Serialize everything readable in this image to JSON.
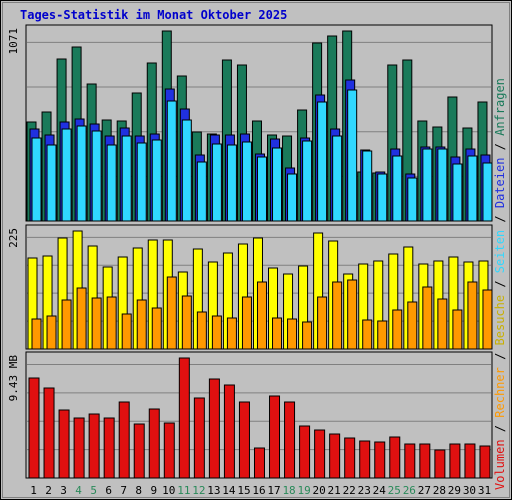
{
  "title": "Tages-Statistik im Monat Oktober 2025",
  "chart_data": {
    "type": "bar",
    "days": [
      "1",
      "2",
      "3",
      "4",
      "5",
      "6",
      "7",
      "8",
      "9",
      "10",
      "11",
      "12",
      "13",
      "14",
      "15",
      "16",
      "17",
      "18",
      "19",
      "20",
      "21",
      "22",
      "23",
      "24",
      "25",
      "26",
      "27",
      "28",
      "29",
      "30",
      "31"
    ],
    "weekend_days": [
      "4",
      "5",
      "11",
      "12",
      "18",
      "19",
      "25",
      "26"
    ],
    "panels": {
      "top": {
        "scale_label": "1071",
        "ymax": 1071,
        "series": [
          {
            "name": "Anfragen",
            "color": "#1a7a5a",
            "values": [
              558,
              616,
              911,
              982,
              773,
              568,
              566,
              722,
              889,
              1071,
              817,
              503,
              492,
              905,
              879,
              563,
              486,
              478,
              626,
              1004,
              1043,
              1071,
              278,
              271,
              877,
              909,
              561,
              529,
              701,
              526,
              668
            ]
          },
          {
            "name": "Dateien",
            "color": "#2030e0",
            "values": [
              518,
              482,
              558,
              573,
              544,
              480,
              525,
              481,
              488,
              742,
              633,
              373,
              483,
              483,
              488,
              378,
              465,
              299,
              470,
              711,
              520,
              794,
              403,
              275,
              405,
              264,
              418,
              418,
              361,
              404,
              372
            ]
          },
          {
            "name": "Seiten",
            "color": "#30d8ff",
            "values": [
              467,
              428,
              521,
              538,
              507,
              426,
              478,
              440,
              457,
              676,
              567,
              332,
              432,
              431,
              443,
              361,
              412,
              267,
              452,
              670,
              480,
              738,
              395,
              263,
              367,
              240,
              404,
              405,
              322,
              364,
              328
            ]
          }
        ]
      },
      "middle": {
        "scale_label": "225",
        "ymax": 225,
        "series": [
          {
            "name": "Besuche",
            "color": "#ffff00",
            "values": [
              173,
              178,
              212,
              225,
              197,
              157,
              175,
              192,
              208,
              208,
              147,
              191,
              165,
              184,
              200,
              211,
              154,
              143,
              158,
              221,
              206,
              143,
              163,
              167,
              182,
              195,
              163,
              167,
              175,
              166,
              168
            ]
          },
          {
            "name": "Rechner",
            "color": "#ff9900",
            "values": [
              58,
              62,
              93,
              117,
              97,
              100,
              67,
              94,
              79,
              137,
              101,
              71,
              62,
              59,
              100,
              128,
              60,
              58,
              52,
              100,
              127,
              132,
              56,
              53,
              75,
              90,
              119,
              96,
              75,
              127,
              113
            ]
          }
        ]
      },
      "bottom": {
        "scale_label": "9.43 MB",
        "ymax": 9.43,
        "series": [
          {
            "name": "Volumen",
            "color": "#e01010",
            "values": [
              7.86,
              7.11,
              5.38,
              4.71,
              5.03,
              4.69,
              5.96,
              4.25,
              5.44,
              4.3,
              9.43,
              6.25,
              7.79,
              7.28,
              5.96,
              2.38,
              6.47,
              5.96,
              4.12,
              3.81,
              3.42,
              3.13,
              2.94,
              2.83,
              3.26,
              2.64,
              2.65,
              2.17,
              2.65,
              2.64,
              2.5
            ]
          }
        ]
      }
    },
    "legend": [
      {
        "name": "Volumen",
        "color": "#e01010",
        "sep": " / "
      },
      {
        "name": "Rechner",
        "color": "#ff9900",
        "sep": " / "
      },
      {
        "name": "Besuche",
        "color": "#ffff00",
        "sep": " / "
      },
      {
        "name": "Seiten",
        "color": "#30d8ff",
        "sep": " / "
      },
      {
        "name": "Dateien",
        "color": "#2030e0",
        "sep": " / "
      },
      {
        "name": "Anfragen",
        "color": "#1a7a5a",
        "sep": ""
      }
    ]
  }
}
